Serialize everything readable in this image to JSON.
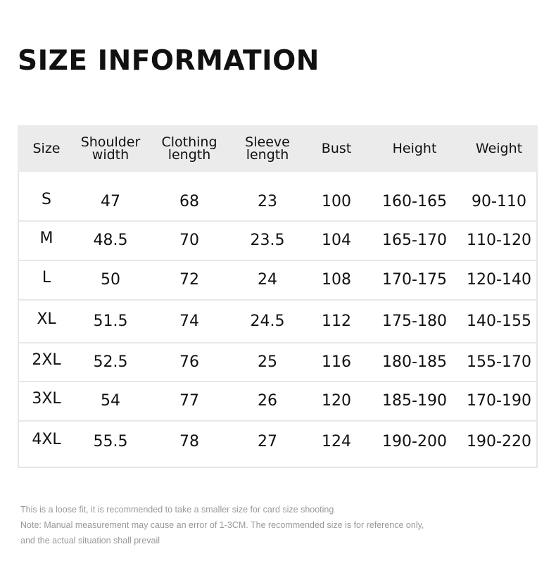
{
  "title": "SIZE INFORMATION",
  "table": {
    "headers": [
      "Size",
      "Shoulder width",
      "Clothing length",
      "Sleeve length",
      "Bust",
      "Height",
      "Weight"
    ],
    "rows": [
      [
        "S",
        "47",
        "68",
        "23",
        "100",
        "160-165",
        "90-110"
      ],
      [
        "M",
        "48.5",
        "70",
        "23.5",
        "104",
        "165-170",
        "110-120"
      ],
      [
        "L",
        "50",
        "72",
        "24",
        "108",
        "170-175",
        "120-140"
      ],
      [
        "XL",
        "51.5",
        "74",
        "24.5",
        "112",
        "175-180",
        "140-155"
      ],
      [
        "2XL",
        "52.5",
        "76",
        "25",
        "116",
        "180-185",
        "155-170"
      ],
      [
        "3XL",
        "54",
        "77",
        "26",
        "120",
        "185-190",
        "170-190"
      ],
      [
        "4XL",
        "55.5",
        "78",
        "27",
        "124",
        "190-200",
        "190-220"
      ]
    ]
  },
  "notes": [
    "This is a loose fit, it is recommended to take a smaller size for card size shooting",
    "Note: Manual measurement may cause an error of 1-3CM. The recommended size is for reference only,",
    "and the actual situation shall prevail"
  ]
}
